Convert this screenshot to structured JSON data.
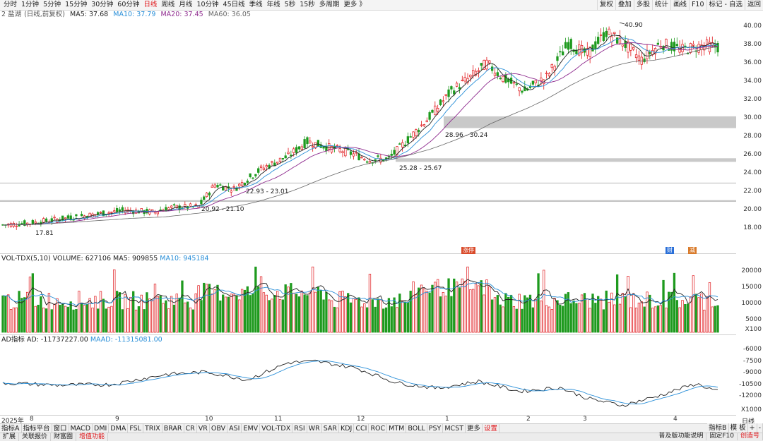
{
  "toolbar": {
    "periods": [
      "分时",
      "1分钟",
      "5分钟",
      "15分钟",
      "30分钟",
      "60分钟",
      "日线",
      "周线",
      "月线",
      "10分钟",
      "45日线",
      "季线",
      "年线",
      "5秒",
      "15秒",
      "多周期",
      "更多 》"
    ],
    "active_period": "日线",
    "right_tools": [
      "复权",
      "叠加",
      "多股",
      "统计",
      "画线",
      "F10",
      "标记 - 自选",
      "返回"
    ]
  },
  "main_legend": {
    "stock_label": "2 盐湖",
    "adjust": "(日线,前复权)",
    "ma5": "MA5: 37.68",
    "ma10": "MA10: 37.79",
    "ma20": "MA20: 37.45",
    "ma60": "MA60: 36.05"
  },
  "colors": {
    "up": "#e0161a",
    "down": "#1e9a1e",
    "ma5": "#222222",
    "ma10": "#2a8fd8",
    "ma20": "#8e2a8e",
    "ma60": "#666666",
    "gap_band": "#cccccc"
  },
  "price_axis": [
    "40.00",
    "38.00",
    "36.00",
    "34.00",
    "32.00",
    "30.00",
    "28.00",
    "26.00",
    "24.00",
    "22.00",
    "20.00",
    "18.00"
  ],
  "annotations": {
    "high": "40.90",
    "low": "17.81",
    "gap1": "20.92 - 21.10",
    "gap2": "22.93 - 23.01",
    "gap3": "25.28 - 25.67",
    "gap4": "28.96 - 30.24"
  },
  "badges": [
    "涨停",
    "财",
    "减"
  ],
  "volume_panel": {
    "title": "VOL-TDX(5,10)",
    "volume": "VOLUME: 627106",
    "ma5": "MA5: 909855",
    "ma10": "MA10: 945184",
    "axis": [
      "20000",
      "15000",
      "10000",
      "5000"
    ],
    "unit": "X100"
  },
  "ad_panel": {
    "title": "AD指标",
    "ad": "AD: -11737227.00",
    "maad": "MAAD: -11315081.00",
    "axis": [
      "-6000",
      "-7500",
      "-9000",
      "-10500",
      "-12000"
    ],
    "unit": "X1000"
  },
  "date_axis": [
    "2025年",
    "8",
    "9",
    "10",
    "11",
    "12",
    "1",
    "2",
    "3",
    "4"
  ],
  "indicator_tabs": [
    "指标A",
    "指标平台",
    "窗口",
    "MACD",
    "DMI",
    "DMA",
    "FSL",
    "TRIX",
    "BRAR",
    "CR",
    "VR",
    "OBV",
    "ASI",
    "EMV",
    "VOL-TDX",
    "RSI",
    "WR",
    "SAR",
    "KDJ",
    "CCI",
    "ROC",
    "MTM",
    "BOLL",
    "PSY",
    "MCST",
    "更多",
    "设置"
  ],
  "indicator_right": [
    "指标B",
    "模 板",
    "+",
    "-"
  ],
  "bottom_tabs": [
    "扩展",
    "关联报价",
    "财富圈",
    "增值功能"
  ],
  "bottom_right": [
    "普及版功能说明",
    "固定F10",
    "创造号"
  ],
  "side_label": "日线"
}
